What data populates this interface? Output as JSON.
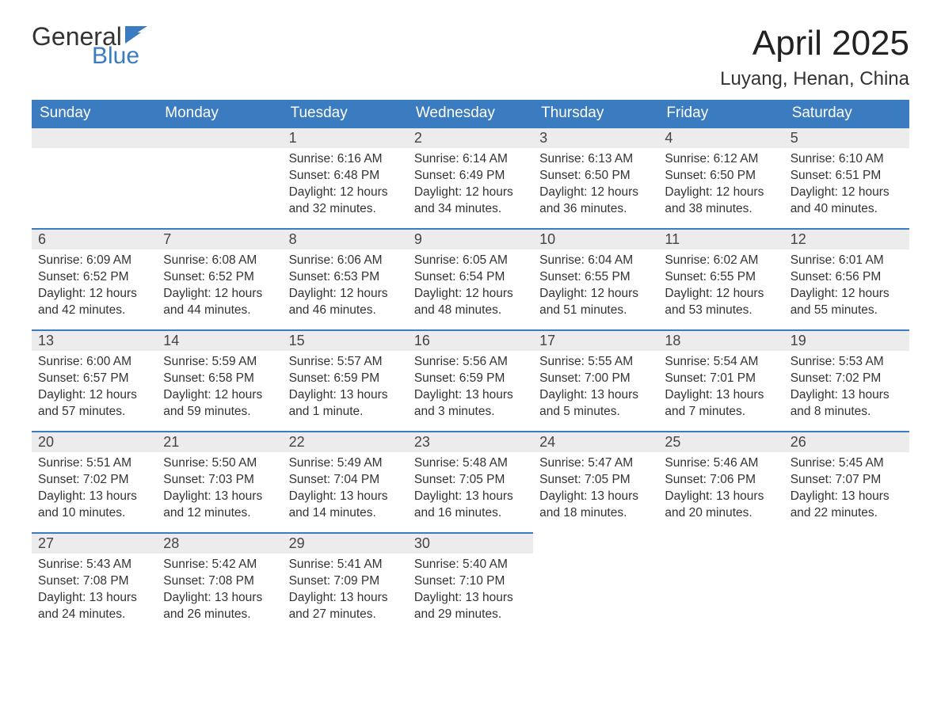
{
  "logo": {
    "word1": "General",
    "word2": "Blue",
    "text_color": "#333333",
    "accent_color": "#3b7bbf"
  },
  "header": {
    "month_title": "April 2025",
    "location": "Luyang, Henan, China"
  },
  "styling": {
    "header_bg": "#3b7bbf",
    "header_text": "#ffffff",
    "daynum_bg": "#ececec",
    "daynum_border": "#3b7bbf",
    "body_bg": "#ffffff",
    "text_color": "#333333",
    "font_family": "Arial"
  },
  "calendar": {
    "day_headers": [
      "Sunday",
      "Monday",
      "Tuesday",
      "Wednesday",
      "Thursday",
      "Friday",
      "Saturday"
    ],
    "weeks": [
      [
        null,
        null,
        {
          "n": "1",
          "sunrise": "Sunrise: 6:16 AM",
          "sunset": "Sunset: 6:48 PM",
          "daylight": "Daylight: 12 hours and 32 minutes."
        },
        {
          "n": "2",
          "sunrise": "Sunrise: 6:14 AM",
          "sunset": "Sunset: 6:49 PM",
          "daylight": "Daylight: 12 hours and 34 minutes."
        },
        {
          "n": "3",
          "sunrise": "Sunrise: 6:13 AM",
          "sunset": "Sunset: 6:50 PM",
          "daylight": "Daylight: 12 hours and 36 minutes."
        },
        {
          "n": "4",
          "sunrise": "Sunrise: 6:12 AM",
          "sunset": "Sunset: 6:50 PM",
          "daylight": "Daylight: 12 hours and 38 minutes."
        },
        {
          "n": "5",
          "sunrise": "Sunrise: 6:10 AM",
          "sunset": "Sunset: 6:51 PM",
          "daylight": "Daylight: 12 hours and 40 minutes."
        }
      ],
      [
        {
          "n": "6",
          "sunrise": "Sunrise: 6:09 AM",
          "sunset": "Sunset: 6:52 PM",
          "daylight": "Daylight: 12 hours and 42 minutes."
        },
        {
          "n": "7",
          "sunrise": "Sunrise: 6:08 AM",
          "sunset": "Sunset: 6:52 PM",
          "daylight": "Daylight: 12 hours and 44 minutes."
        },
        {
          "n": "8",
          "sunrise": "Sunrise: 6:06 AM",
          "sunset": "Sunset: 6:53 PM",
          "daylight": "Daylight: 12 hours and 46 minutes."
        },
        {
          "n": "9",
          "sunrise": "Sunrise: 6:05 AM",
          "sunset": "Sunset: 6:54 PM",
          "daylight": "Daylight: 12 hours and 48 minutes."
        },
        {
          "n": "10",
          "sunrise": "Sunrise: 6:04 AM",
          "sunset": "Sunset: 6:55 PM",
          "daylight": "Daylight: 12 hours and 51 minutes."
        },
        {
          "n": "11",
          "sunrise": "Sunrise: 6:02 AM",
          "sunset": "Sunset: 6:55 PM",
          "daylight": "Daylight: 12 hours and 53 minutes."
        },
        {
          "n": "12",
          "sunrise": "Sunrise: 6:01 AM",
          "sunset": "Sunset: 6:56 PM",
          "daylight": "Daylight: 12 hours and 55 minutes."
        }
      ],
      [
        {
          "n": "13",
          "sunrise": "Sunrise: 6:00 AM",
          "sunset": "Sunset: 6:57 PM",
          "daylight": "Daylight: 12 hours and 57 minutes."
        },
        {
          "n": "14",
          "sunrise": "Sunrise: 5:59 AM",
          "sunset": "Sunset: 6:58 PM",
          "daylight": "Daylight: 12 hours and 59 minutes."
        },
        {
          "n": "15",
          "sunrise": "Sunrise: 5:57 AM",
          "sunset": "Sunset: 6:59 PM",
          "daylight": "Daylight: 13 hours and 1 minute."
        },
        {
          "n": "16",
          "sunrise": "Sunrise: 5:56 AM",
          "sunset": "Sunset: 6:59 PM",
          "daylight": "Daylight: 13 hours and 3 minutes."
        },
        {
          "n": "17",
          "sunrise": "Sunrise: 5:55 AM",
          "sunset": "Sunset: 7:00 PM",
          "daylight": "Daylight: 13 hours and 5 minutes."
        },
        {
          "n": "18",
          "sunrise": "Sunrise: 5:54 AM",
          "sunset": "Sunset: 7:01 PM",
          "daylight": "Daylight: 13 hours and 7 minutes."
        },
        {
          "n": "19",
          "sunrise": "Sunrise: 5:53 AM",
          "sunset": "Sunset: 7:02 PM",
          "daylight": "Daylight: 13 hours and 8 minutes."
        }
      ],
      [
        {
          "n": "20",
          "sunrise": "Sunrise: 5:51 AM",
          "sunset": "Sunset: 7:02 PM",
          "daylight": "Daylight: 13 hours and 10 minutes."
        },
        {
          "n": "21",
          "sunrise": "Sunrise: 5:50 AM",
          "sunset": "Sunset: 7:03 PM",
          "daylight": "Daylight: 13 hours and 12 minutes."
        },
        {
          "n": "22",
          "sunrise": "Sunrise: 5:49 AM",
          "sunset": "Sunset: 7:04 PM",
          "daylight": "Daylight: 13 hours and 14 minutes."
        },
        {
          "n": "23",
          "sunrise": "Sunrise: 5:48 AM",
          "sunset": "Sunset: 7:05 PM",
          "daylight": "Daylight: 13 hours and 16 minutes."
        },
        {
          "n": "24",
          "sunrise": "Sunrise: 5:47 AM",
          "sunset": "Sunset: 7:05 PM",
          "daylight": "Daylight: 13 hours and 18 minutes."
        },
        {
          "n": "25",
          "sunrise": "Sunrise: 5:46 AM",
          "sunset": "Sunset: 7:06 PM",
          "daylight": "Daylight: 13 hours and 20 minutes."
        },
        {
          "n": "26",
          "sunrise": "Sunrise: 5:45 AM",
          "sunset": "Sunset: 7:07 PM",
          "daylight": "Daylight: 13 hours and 22 minutes."
        }
      ],
      [
        {
          "n": "27",
          "sunrise": "Sunrise: 5:43 AM",
          "sunset": "Sunset: 7:08 PM",
          "daylight": "Daylight: 13 hours and 24 minutes."
        },
        {
          "n": "28",
          "sunrise": "Sunrise: 5:42 AM",
          "sunset": "Sunset: 7:08 PM",
          "daylight": "Daylight: 13 hours and 26 minutes."
        },
        {
          "n": "29",
          "sunrise": "Sunrise: 5:41 AM",
          "sunset": "Sunset: 7:09 PM",
          "daylight": "Daylight: 13 hours and 27 minutes."
        },
        {
          "n": "30",
          "sunrise": "Sunrise: 5:40 AM",
          "sunset": "Sunset: 7:10 PM",
          "daylight": "Daylight: 13 hours and 29 minutes."
        },
        null,
        null,
        null
      ]
    ]
  }
}
